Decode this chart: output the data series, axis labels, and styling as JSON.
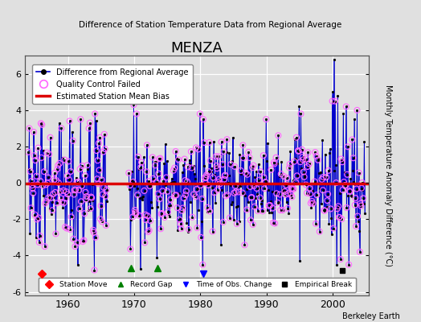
{
  "title": "MENZA",
  "subtitle": "Difference of Station Temperature Data from Regional Average",
  "ylabel": "Monthly Temperature Anomaly Difference (°C)",
  "xlabel_years": [
    1960,
    1970,
    1980,
    1990,
    2000
  ],
  "ylim": [
    -6.2,
    7.0
  ],
  "xlim": [
    1953.5,
    2005.5
  ],
  "bias_line_y": -0.05,
  "bias_line_color": "#dd0000",
  "series_line_color": "#0000cc",
  "series_dot_color": "#000000",
  "qc_circle_color": "#ff66ff",
  "bg_color": "#e0e0e0",
  "plot_bg_color": "#e0e0e0",
  "grid_color": "#ffffff",
  "annotation": "Berkeley Earth",
  "yticks": [
    -6,
    -4,
    -2,
    0,
    2,
    4,
    6
  ],
  "seed": 42,
  "record_gap_start": 1966.0,
  "record_gap_end": 1969.2,
  "data_start": 1954.0,
  "data_end": 2004.9
}
